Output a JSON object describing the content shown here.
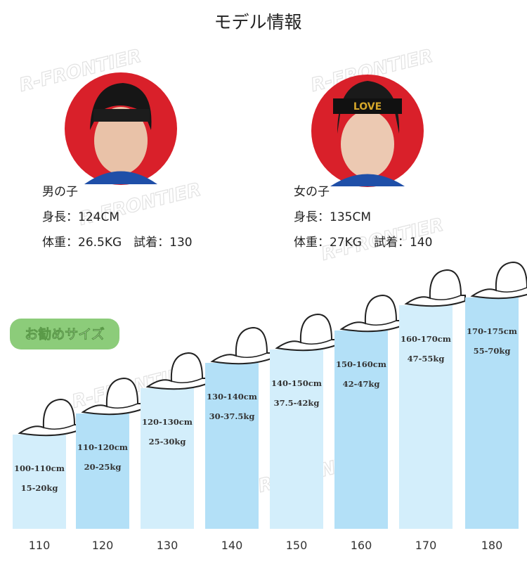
{
  "title": "モデル情報",
  "watermark": "R-FRONTIER",
  "models": [
    {
      "label": "男の子",
      "height": "身長：124CM",
      "weight": "体重：26.5KG　試着：130"
    },
    {
      "label": "女の子",
      "height": "身長：135CM",
      "weight": "体重：27KG　試着：140"
    }
  ],
  "badge": "お勧めサイズ",
  "sizes": [
    {
      "size": "110",
      "height": "100-110cm",
      "weight": "15-20kg"
    },
    {
      "size": "120",
      "height": "110-120cm",
      "weight": "20-25kg"
    },
    {
      "size": "130",
      "height": "120-130cm",
      "weight": "25-30kg"
    },
    {
      "size": "140",
      "height": "130-140cm",
      "weight": "30-37.5kg"
    },
    {
      "size": "150",
      "height": "140-150cm",
      "weight": "37.5-42kg"
    },
    {
      "size": "160",
      "height": "150-160cm",
      "weight": "42-47kg"
    },
    {
      "size": "170",
      "height": "160-170cm",
      "weight": "47-55kg"
    },
    {
      "size": "180",
      "height": "170-175cm",
      "weight": "55-70kg"
    }
  ]
}
